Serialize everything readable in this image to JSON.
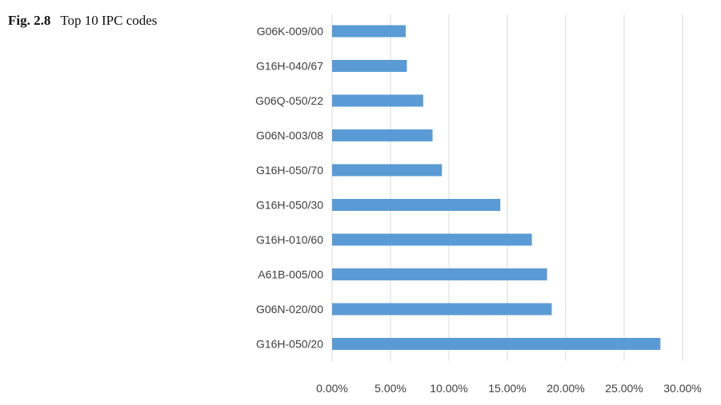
{
  "caption": {
    "label": "Fig. 2.8",
    "text": "Top 10 IPC codes"
  },
  "chart_data": {
    "type": "bar",
    "orientation": "horizontal",
    "title": "",
    "xlabel": "",
    "ylabel": "",
    "categories": [
      "G06K-009/00",
      "G16H-040/67",
      "G06Q-050/22",
      "G06N-003/08",
      "G16H-050/70",
      "G16H-050/30",
      "G16H-010/60",
      "A61B-005/00",
      "G06N-020/00",
      "G16H-050/20"
    ],
    "values": [
      6.3,
      6.4,
      7.8,
      8.6,
      9.4,
      14.4,
      17.1,
      18.4,
      18.8,
      28.1
    ],
    "xlim": [
      0,
      30
    ],
    "ticks": [
      0,
      5,
      10,
      15,
      20,
      25,
      30
    ],
    "tick_labels": [
      "0.00%",
      "5.00%",
      "10.00%",
      "15.00%",
      "20.00%",
      "25.00%",
      "30.00%"
    ],
    "grid": true,
    "legend": "none",
    "bar_color": "#5b9bd5",
    "grid_color": "#d9d9d9"
  }
}
